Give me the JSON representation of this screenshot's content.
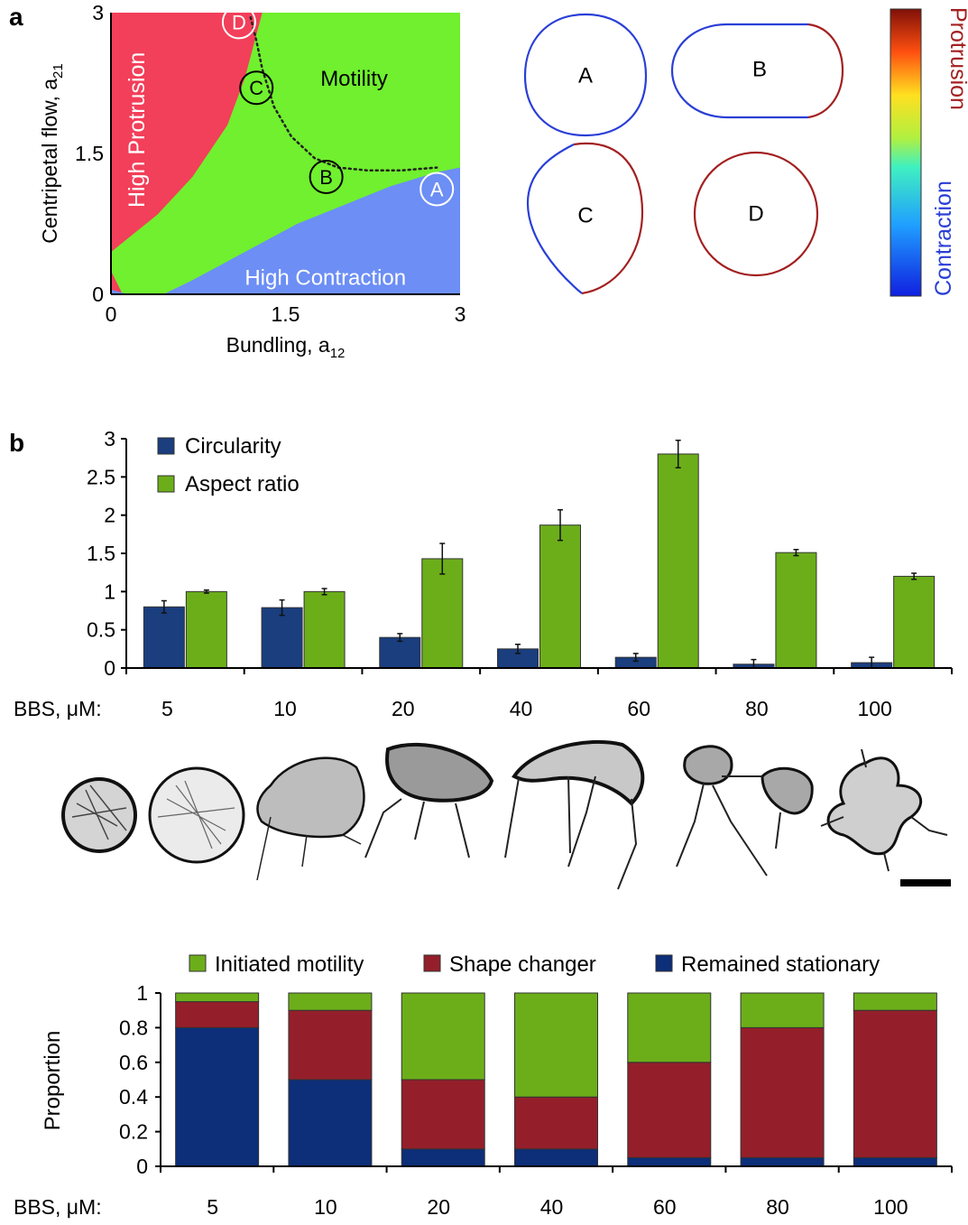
{
  "panel_a": {
    "letter": "a",
    "region_labels": {
      "protrusion": "High Protrusion",
      "motility": "Motility",
      "contraction": "High Contraction"
    },
    "point_labels": [
      "A",
      "B",
      "C",
      "D"
    ],
    "shape_labels": [
      "A",
      "B",
      "C",
      "D"
    ],
    "colorbar": {
      "top_label": "Protrusion",
      "bottom_label": "Contraction"
    },
    "colors": {
      "protrusion": "#f23f5a",
      "motility": "#70f02e",
      "contraction": "#6c8ef5",
      "membrane_protrusion": "#a32020",
      "membrane_contraction": "#2a3fd6"
    }
  },
  "panel_b": {
    "letter": "b"
  },
  "chart_data": [
    {
      "type": "area",
      "title": "",
      "xlabel_main": "Bundling, a",
      "xlabel_sub": "12",
      "ylabel_main": "Centripetal flow, a",
      "ylabel_sub": "21",
      "xlim": [
        0,
        3
      ],
      "ylim": [
        0,
        3
      ],
      "x_ticks": [
        "0",
        "1.5",
        "3"
      ],
      "y_ticks": [
        "0",
        "1.5",
        "3"
      ],
      "regions": [
        {
          "name": "High Protrusion",
          "boundary_x": [
            0.0,
            0.2,
            0.4,
            0.7,
            1.0,
            1.15,
            1.3
          ],
          "boundary_y": [
            0.45,
            0.65,
            0.85,
            1.25,
            1.8,
            2.3,
            3.0
          ]
        },
        {
          "name": "High Contraction",
          "boundary_x": [
            0.45,
            0.7,
            1.0,
            1.3,
            1.6,
            2.0,
            2.4,
            2.8,
            3.0
          ],
          "boundary_y": [
            0.0,
            0.15,
            0.35,
            0.55,
            0.75,
            0.95,
            1.15,
            1.3,
            1.35
          ]
        }
      ],
      "trajectory": {
        "x": [
          1.2,
          1.25,
          1.3,
          1.4,
          1.55,
          1.75,
          1.95,
          2.2,
          2.5,
          2.8
        ],
        "y": [
          2.95,
          2.7,
          2.4,
          2.0,
          1.68,
          1.45,
          1.35,
          1.32,
          1.32,
          1.35
        ]
      },
      "points": [
        {
          "label": "A",
          "x": 2.8,
          "y": 1.12
        },
        {
          "label": "B",
          "x": 1.85,
          "y": 1.25
        },
        {
          "label": "C",
          "x": 1.25,
          "y": 2.2
        },
        {
          "label": "D",
          "x": 1.1,
          "y": 2.9
        }
      ]
    },
    {
      "type": "bar",
      "title": "",
      "xlabel": "BBS, μM:",
      "ylabel": "",
      "ylim": [
        0,
        3
      ],
      "y_ticks": [
        "0",
        "0.5",
        "1",
        "1.5",
        "2",
        "2.5",
        "3"
      ],
      "categories": [
        "5",
        "10",
        "20",
        "40",
        "60",
        "80",
        "100"
      ],
      "legend_position": "top-left",
      "series": [
        {
          "name": "Circularity",
          "color": "#1a3e7e",
          "values": [
            0.8,
            0.79,
            0.4,
            0.25,
            0.14,
            0.05,
            0.07
          ],
          "errors": [
            0.08,
            0.1,
            0.05,
            0.06,
            0.05,
            0.06,
            0.07
          ]
        },
        {
          "name": "Aspect ratio",
          "color": "#6cae1a",
          "values": [
            1.0,
            1.0,
            1.43,
            1.87,
            2.8,
            1.51,
            1.2
          ],
          "errors": [
            0.02,
            0.04,
            0.2,
            0.2,
            0.18,
            0.04,
            0.04
          ]
        }
      ]
    },
    {
      "type": "bar",
      "stacked": true,
      "title": "",
      "xlabel": "BBS, μM:",
      "ylabel": "Proportion",
      "ylim": [
        0,
        1
      ],
      "y_ticks": [
        "0",
        "0.2",
        "0.4",
        "0.6",
        "0.8",
        "1"
      ],
      "categories": [
        "5",
        "10",
        "20",
        "40",
        "60",
        "80",
        "100"
      ],
      "legend_position": "top",
      "series": [
        {
          "name": "Remained stationary",
          "color": "#0d2e78",
          "values": [
            0.8,
            0.5,
            0.1,
            0.1,
            0.05,
            0.05,
            0.05
          ]
        },
        {
          "name": "Shape changer",
          "color": "#941f2a",
          "values": [
            0.15,
            0.4,
            0.4,
            0.3,
            0.55,
            0.75,
            0.85
          ]
        },
        {
          "name": "Initiated motility",
          "color": "#6cae1a",
          "values": [
            0.05,
            0.1,
            0.5,
            0.6,
            0.4,
            0.2,
            0.1
          ]
        }
      ],
      "legend_order": [
        "Initiated motility",
        "Shape changer",
        "Remained stationary"
      ]
    }
  ]
}
